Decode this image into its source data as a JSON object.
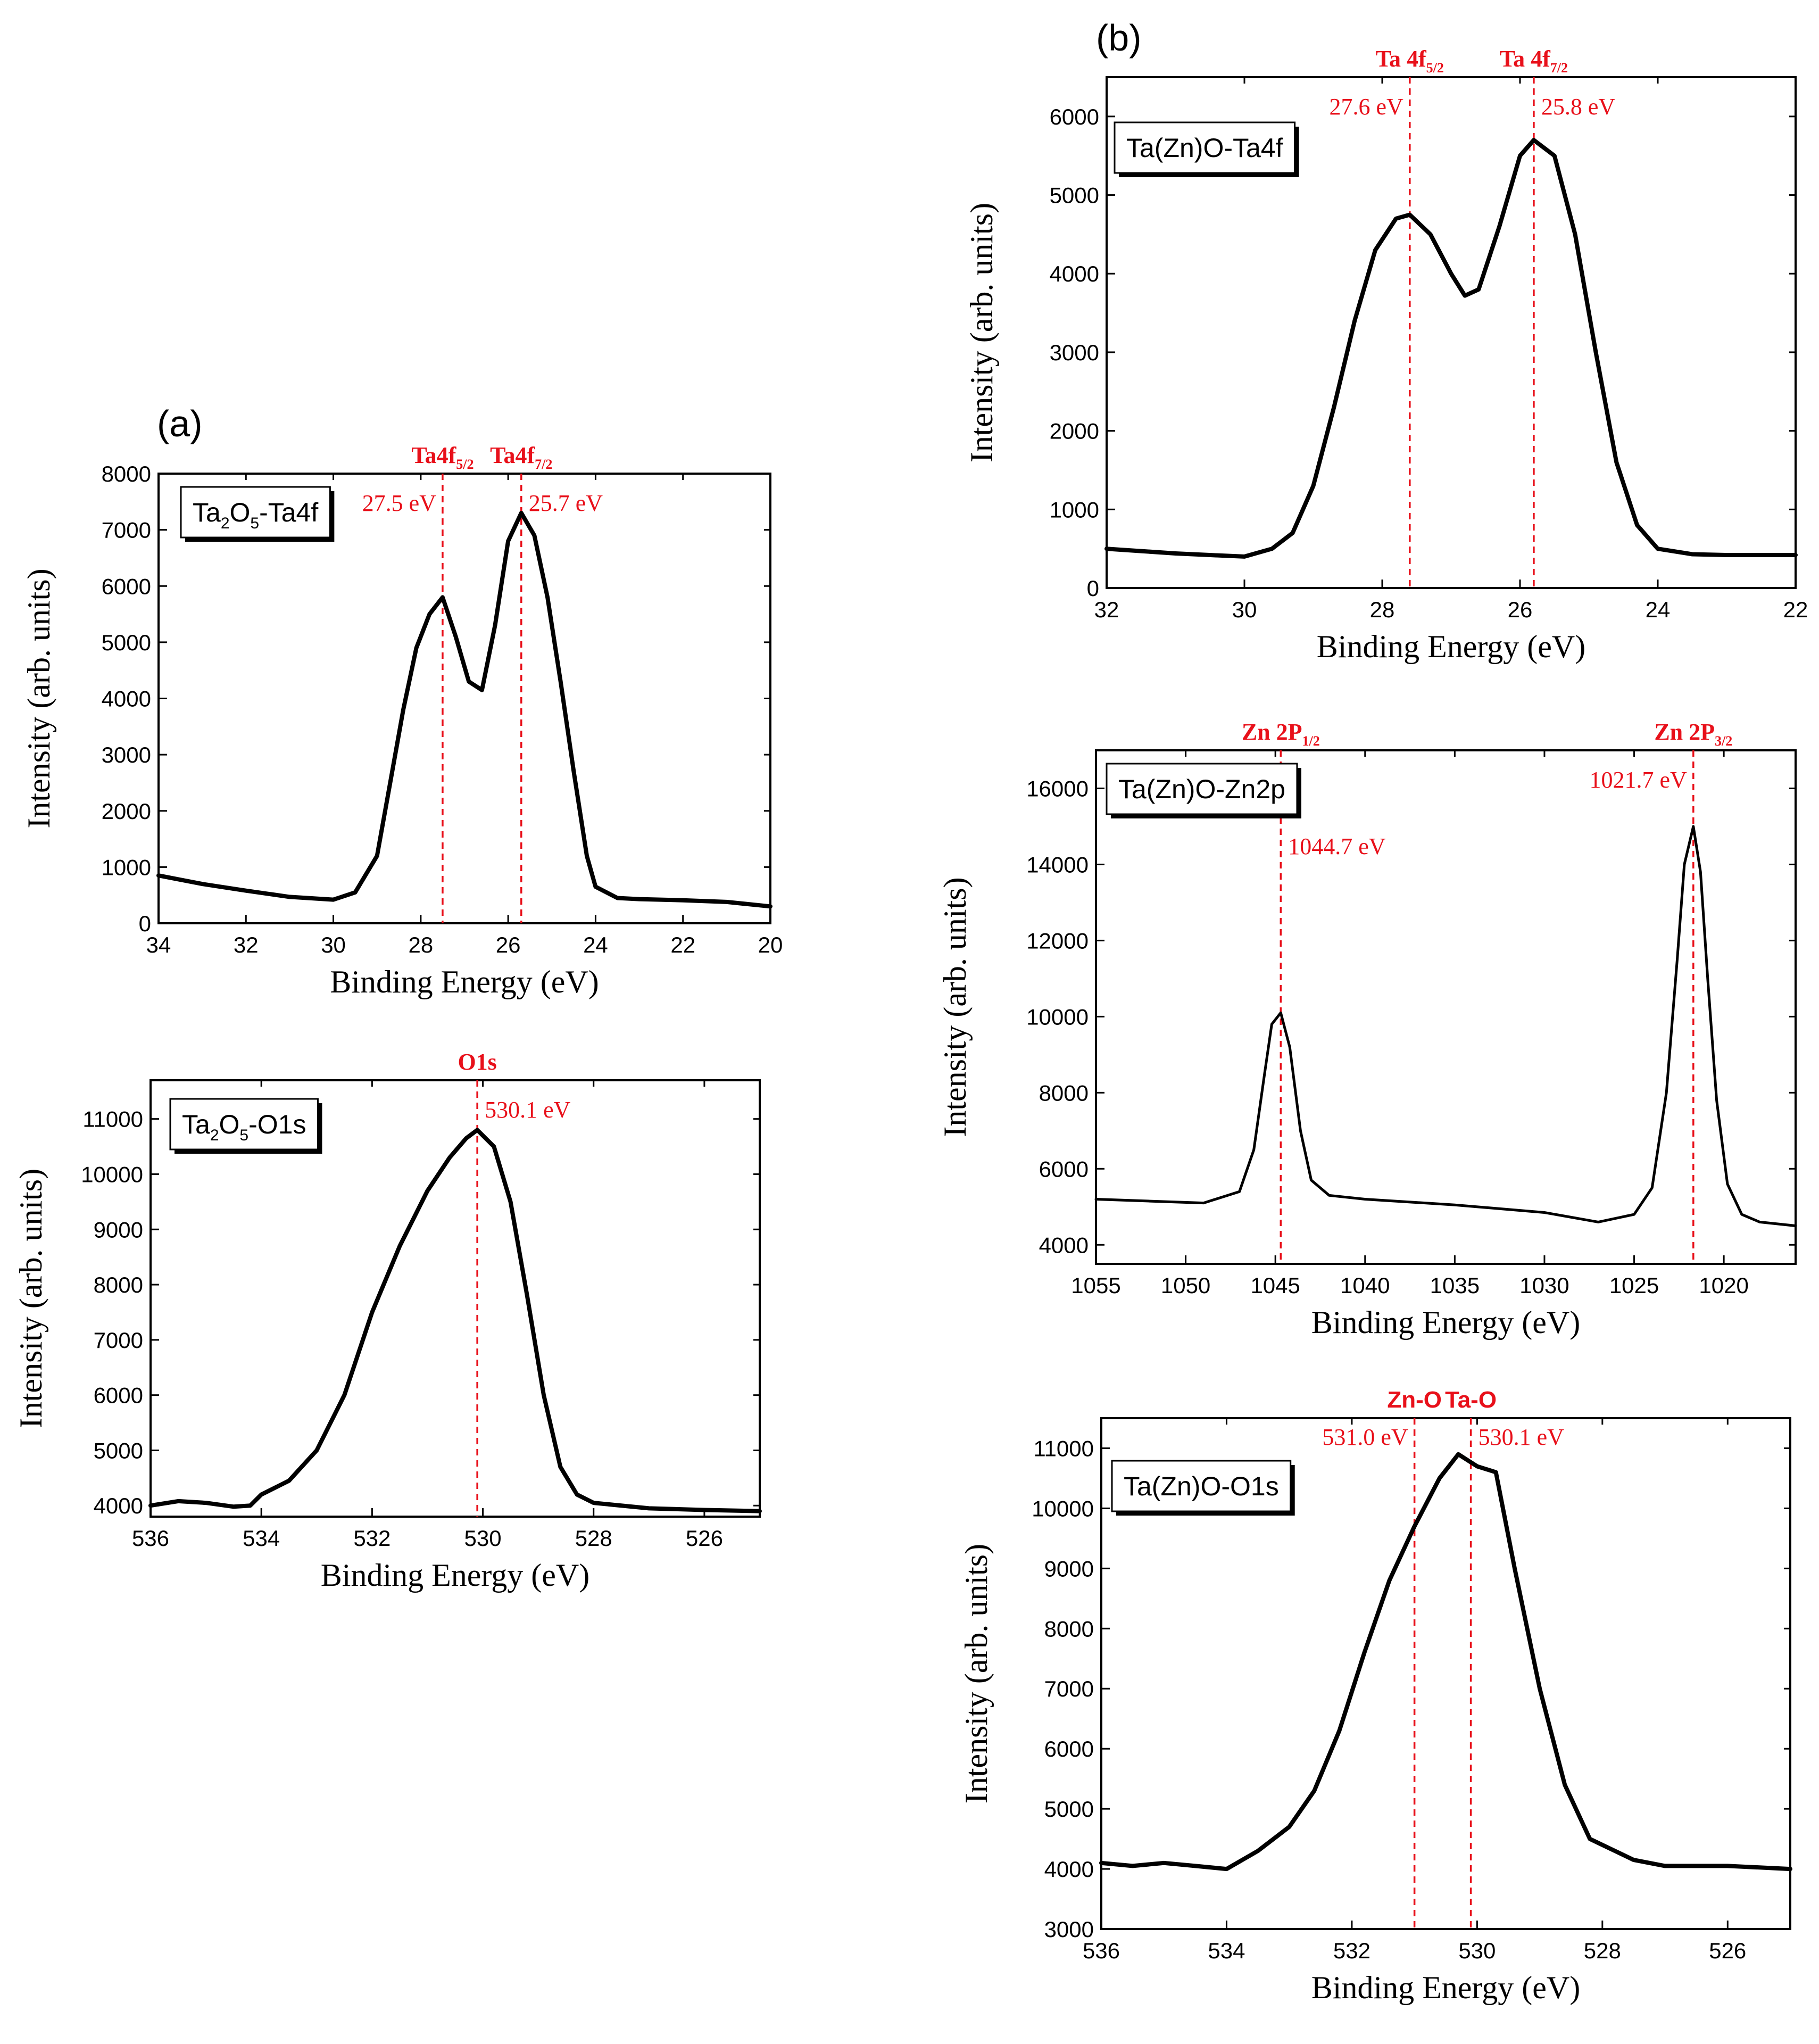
{
  "panels": {
    "a": "(a)",
    "b": "(b)"
  },
  "colors": {
    "reference": "#e8101a",
    "curve": "#000000"
  },
  "chart_data": [
    {
      "id": "a-ta4f",
      "type": "line",
      "legend_text": "Ta2O5-Ta4f",
      "legend_parts": [
        {
          "t": "Ta",
          "sub": false
        },
        {
          "t": "2",
          "sub": true
        },
        {
          "t": "O",
          "sub": false
        },
        {
          "t": "5",
          "sub": true
        },
        {
          "t": "-Ta4f",
          "sub": false
        }
      ],
      "xlabel": "Binding Energy (eV)",
      "ylabel": "Intensity (arb. units)",
      "xlim": [
        34,
        20
      ],
      "ylim": [
        0,
        8000
      ],
      "xticks": [
        34,
        32,
        30,
        28,
        26,
        24,
        22,
        20
      ],
      "yticks": [
        0,
        1000,
        2000,
        3000,
        4000,
        5000,
        6000,
        7000,
        8000
      ],
      "reversed_x": true,
      "peaks": [
        {
          "x": 27.5,
          "name_parts": [
            {
              "t": "Ta4f",
              "sub": false
            },
            {
              "t": "5/2",
              "sub": true
            }
          ],
          "energy": "27.5 eV",
          "energy_side": "left"
        },
        {
          "x": 25.7,
          "name_parts": [
            {
              "t": "Ta4f",
              "sub": false
            },
            {
              "t": "7/2",
              "sub": true
            }
          ],
          "energy": "25.7 eV",
          "energy_side": "right"
        }
      ],
      "x": [
        34,
        33,
        32,
        31,
        30,
        29.5,
        29,
        28.7,
        28.4,
        28.1,
        27.8,
        27.5,
        27.2,
        26.9,
        26.6,
        26.3,
        26.0,
        25.7,
        25.4,
        25.1,
        24.8,
        24.5,
        24.2,
        24.0,
        23.5,
        23,
        22,
        21,
        20
      ],
      "y": [
        850,
        700,
        580,
        470,
        420,
        550,
        1200,
        2500,
        3800,
        4900,
        5500,
        5800,
        5100,
        4300,
        4150,
        5300,
        6800,
        7300,
        6900,
        5800,
        4300,
        2700,
        1200,
        650,
        450,
        430,
        410,
        380,
        300
      ]
    },
    {
      "id": "a-o1s",
      "type": "line",
      "legend_text": "Ta2O5-O1s",
      "legend_parts": [
        {
          "t": "Ta",
          "sub": false
        },
        {
          "t": "2",
          "sub": true
        },
        {
          "t": "O",
          "sub": false
        },
        {
          "t": "5",
          "sub": true
        },
        {
          "t": "-O1s",
          "sub": false
        }
      ],
      "xlabel": "Binding Energy (eV)",
      "ylabel": "Intensity (arb. units)",
      "xlim": [
        536,
        525
      ],
      "ylim": [
        3800,
        11700
      ],
      "xticks": [
        536,
        534,
        532,
        530,
        528,
        526
      ],
      "yticks": [
        4000,
        5000,
        6000,
        7000,
        8000,
        9000,
        10000,
        11000
      ],
      "reversed_x": true,
      "peaks": [
        {
          "x": 530.1,
          "name_parts": [
            {
              "t": "O1s",
              "sub": false
            }
          ],
          "energy": "530.1 eV",
          "energy_side": "right"
        }
      ],
      "x": [
        536,
        535.5,
        535,
        534.5,
        534.2,
        534,
        533.5,
        533,
        532.5,
        532,
        531.5,
        531,
        530.6,
        530.3,
        530.1,
        529.8,
        529.5,
        529.2,
        528.9,
        528.6,
        528.3,
        528,
        527,
        526,
        525
      ],
      "y": [
        4000,
        4080,
        4050,
        3980,
        4000,
        4200,
        4450,
        5000,
        6000,
        7500,
        8700,
        9700,
        10300,
        10650,
        10800,
        10500,
        9500,
        7800,
        6000,
        4700,
        4200,
        4050,
        3950,
        3920,
        3900
      ]
    },
    {
      "id": "b-ta4f",
      "type": "line",
      "legend_text": "Ta(Zn)O-Ta4f",
      "legend_parts": [
        {
          "t": "Ta(Zn)O-Ta4f",
          "sub": false
        }
      ],
      "xlabel": "Binding Energy (eV)",
      "ylabel": "Intensity (arb. units)",
      "xlim": [
        32,
        22
      ],
      "ylim": [
        0,
        6500
      ],
      "xticks": [
        32,
        30,
        28,
        26,
        24,
        22
      ],
      "yticks": [
        0,
        1000,
        2000,
        3000,
        4000,
        5000,
        6000
      ],
      "reversed_x": true,
      "peaks": [
        {
          "x": 27.6,
          "name_parts": [
            {
              "t": "Ta 4f",
              "sub": false
            },
            {
              "t": "5/2",
              "sub": true
            }
          ],
          "energy": "27.6 eV",
          "energy_side": "left"
        },
        {
          "x": 25.8,
          "name_parts": [
            {
              "t": "Ta 4f",
              "sub": false
            },
            {
              "t": "7/2",
              "sub": true
            }
          ],
          "energy": "25.8 eV",
          "energy_side": "right"
        }
      ],
      "x": [
        32,
        31.5,
        31,
        30.5,
        30,
        29.6,
        29.3,
        29.0,
        28.7,
        28.4,
        28.1,
        27.8,
        27.6,
        27.3,
        27.0,
        26.8,
        26.6,
        26.3,
        26.0,
        25.8,
        25.5,
        25.2,
        24.9,
        24.6,
        24.3,
        24.0,
        23.5,
        23,
        22.5,
        22
      ],
      "y": [
        500,
        470,
        440,
        420,
        400,
        500,
        700,
        1300,
        2300,
        3400,
        4300,
        4700,
        4750,
        4500,
        4000,
        3720,
        3800,
        4600,
        5500,
        5700,
        5500,
        4500,
        3000,
        1600,
        800,
        500,
        430,
        420,
        420,
        420
      ]
    },
    {
      "id": "b-zn2p",
      "type": "line",
      "legend_text": "Ta(Zn)O-Zn2p",
      "legend_parts": [
        {
          "t": "Ta(Zn)O-Zn2p",
          "sub": false
        }
      ],
      "xlabel": "Binding Energy (eV)",
      "ylabel": "Intensity (arb. units)",
      "xlim": [
        1055,
        1016
      ],
      "ylim": [
        3500,
        17000
      ],
      "xticks": [
        1055,
        1050,
        1045,
        1040,
        1035,
        1030,
        1025,
        1020
      ],
      "yticks": [
        4000,
        6000,
        8000,
        10000,
        12000,
        14000,
        16000
      ],
      "reversed_x": true,
      "peaks": [
        {
          "x": 1044.7,
          "name_parts": [
            {
              "t": "Zn 2P",
              "sub": false
            },
            {
              "t": "1/2",
              "sub": true
            }
          ],
          "energy": "1044.7 eV",
          "energy_side": "right-low"
        },
        {
          "x": 1021.7,
          "name_parts": [
            {
              "t": "Zn 2P",
              "sub": false
            },
            {
              "t": "3/2",
              "sub": true
            }
          ],
          "energy": "1021.7 eV",
          "energy_side": "left"
        }
      ],
      "x": [
        1055,
        1052,
        1049,
        1047,
        1046.2,
        1045.6,
        1045.2,
        1044.7,
        1044.2,
        1043.6,
        1043,
        1042,
        1040,
        1035,
        1030,
        1027,
        1025,
        1024,
        1023.2,
        1022.6,
        1022.2,
        1021.7,
        1021.3,
        1020.9,
        1020.4,
        1019.8,
        1019,
        1018,
        1016
      ],
      "y": [
        5200,
        5150,
        5100,
        5400,
        6500,
        8500,
        9800,
        10100,
        9200,
        7000,
        5700,
        5300,
        5200,
        5050,
        4850,
        4600,
        4800,
        5500,
        8000,
        11500,
        14000,
        15000,
        13800,
        11000,
        7800,
        5600,
        4800,
        4600,
        4500
      ]
    },
    {
      "id": "b-o1s",
      "type": "line",
      "legend_text": "Ta(Zn)O-O1s",
      "legend_parts": [
        {
          "t": "Ta(Zn)O-O1s",
          "sub": false
        }
      ],
      "xlabel": "Binding Energy (eV)",
      "ylabel": "Intensity (arb. units)",
      "xlim": [
        536,
        525
      ],
      "ylim": [
        3000,
        11500
      ],
      "xticks": [
        536,
        534,
        532,
        530,
        528,
        526
      ],
      "yticks": [
        3000,
        4000,
        5000,
        6000,
        7000,
        8000,
        9000,
        10000,
        11000
      ],
      "reversed_x": true,
      "peaks": [
        {
          "x": 531.0,
          "name_parts": [
            {
              "t": "Zn-O",
              "sub": false
            }
          ],
          "energy": "531.0 eV",
          "energy_side": "left-small",
          "sans": true
        },
        {
          "x": 530.1,
          "name_parts": [
            {
              "t": "Ta-O",
              "sub": false
            }
          ],
          "energy": "530.1 eV",
          "energy_side": "right-small",
          "sans": true
        }
      ],
      "x": [
        536,
        535.5,
        535,
        534.5,
        534,
        533.5,
        533,
        532.6,
        532.2,
        531.8,
        531.4,
        531.0,
        530.6,
        530.3,
        530.0,
        529.7,
        529.4,
        529.0,
        528.6,
        528.2,
        527.5,
        527,
        526,
        525
      ],
      "y": [
        4100,
        4050,
        4100,
        4050,
        4000,
        4300,
        4700,
        5300,
        6300,
        7600,
        8800,
        9700,
        10500,
        10900,
        10700,
        10600,
        9000,
        7000,
        5400,
        4500,
        4150,
        4050,
        4050,
        4000
      ]
    }
  ]
}
